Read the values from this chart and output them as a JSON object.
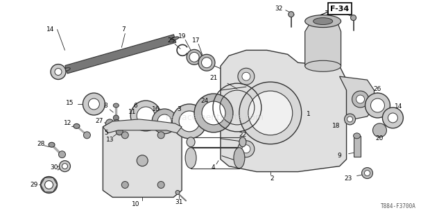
{
  "bg_color": "#ffffff",
  "fig_width": 6.2,
  "fig_height": 3.1,
  "dpi": 100,
  "diagram_code": "T884-F3700A",
  "frame_label": "F-34"
}
